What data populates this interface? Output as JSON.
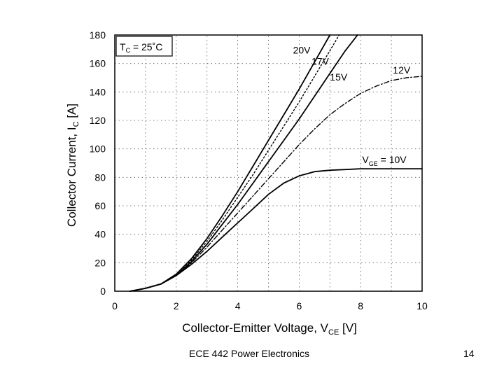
{
  "slide": {
    "footer_left": "ECE 442 Power Electronics",
    "page_number": "14"
  },
  "chart_data": {
    "type": "line",
    "xlabel": "Collector-Emitter Voltage, V",
    "xlabel_sub": "CE",
    "xlabel_unit": " [V]",
    "ylabel": "Collector Current, I",
    "ylabel_sub": "C",
    "ylabel_unit": " [A]",
    "xlim": [
      0,
      10
    ],
    "ylim": [
      0,
      180
    ],
    "xticks": [
      0,
      2,
      4,
      6,
      8,
      10
    ],
    "yticks": [
      0,
      20,
      40,
      60,
      80,
      100,
      120,
      140,
      160,
      180
    ],
    "grid": true,
    "condition_box": {
      "prefix": "T",
      "sub": "C",
      "suffix": " = 25˚C"
    },
    "series": [
      {
        "name": "20V",
        "style": "solid",
        "color": "#000000",
        "x": [
          0.5,
          1.0,
          1.5,
          2.0,
          2.5,
          3.0,
          3.5,
          4.0,
          4.5,
          5.0,
          5.5,
          6.0,
          6.5,
          7.0
        ],
        "y": [
          0,
          2,
          5,
          12,
          23,
          37,
          53,
          70,
          88,
          106,
          124,
          142,
          161,
          180
        ]
      },
      {
        "name": "17V",
        "style": "dotted",
        "color": "#000000",
        "x": [
          0.5,
          1.0,
          1.5,
          2.0,
          2.5,
          3.0,
          3.5,
          4.0,
          4.5,
          5.0,
          5.5,
          6.0,
          6.5,
          7.0,
          7.3
        ],
        "y": [
          0,
          2,
          5,
          11,
          22,
          35,
          50,
          66,
          82,
          99,
          116,
          133,
          151,
          169,
          180
        ]
      },
      {
        "name": "15V",
        "style": "solid",
        "color": "#000000",
        "x": [
          0.5,
          1.0,
          1.5,
          2.0,
          2.5,
          3.0,
          3.5,
          4.0,
          4.5,
          5.0,
          5.5,
          6.0,
          6.5,
          7.0,
          7.5,
          7.9
        ],
        "y": [
          0,
          2,
          5,
          11,
          21,
          33,
          47,
          61,
          76,
          91,
          106,
          121,
          137,
          153,
          169,
          180
        ]
      },
      {
        "name": "12V",
        "style": "dashdot",
        "color": "#000000",
        "x": [
          0.5,
          1.0,
          1.5,
          2.0,
          2.5,
          3.0,
          3.5,
          4.0,
          4.5,
          5.0,
          5.5,
          6.0,
          6.5,
          7.0,
          7.5,
          8.0,
          8.5,
          9.0,
          9.5,
          10.0
        ],
        "y": [
          0,
          2,
          5,
          11,
          20,
          31,
          43,
          55,
          67,
          79,
          91,
          103,
          114,
          124,
          132,
          139,
          144,
          148,
          150,
          151
        ]
      },
      {
        "name": "V_GE = 10V",
        "style": "solid",
        "color": "#000000",
        "x": [
          0.5,
          1.0,
          1.5,
          2.0,
          2.5,
          3.0,
          3.5,
          4.0,
          4.5,
          5.0,
          5.5,
          6.0,
          6.5,
          7.0,
          7.5,
          8.0,
          9.0,
          10.0
        ],
        "y": [
          0,
          2,
          5,
          11,
          19,
          28,
          38,
          48,
          58,
          68,
          76,
          81,
          84,
          85,
          85.5,
          86,
          86,
          86
        ]
      }
    ],
    "curve_labels": [
      {
        "text": "20V",
        "x": 5.8,
        "y": 167
      },
      {
        "text": "17V",
        "x": 6.4,
        "y": 159
      },
      {
        "text": "15V",
        "x": 7.0,
        "y": 148
      },
      {
        "text": "12V",
        "x": 9.05,
        "y": 153
      }
    ],
    "vge_label": {
      "prefix": "V",
      "sub": "GE",
      "suffix": " = 10V",
      "x": 8.05,
      "y": 90
    }
  }
}
